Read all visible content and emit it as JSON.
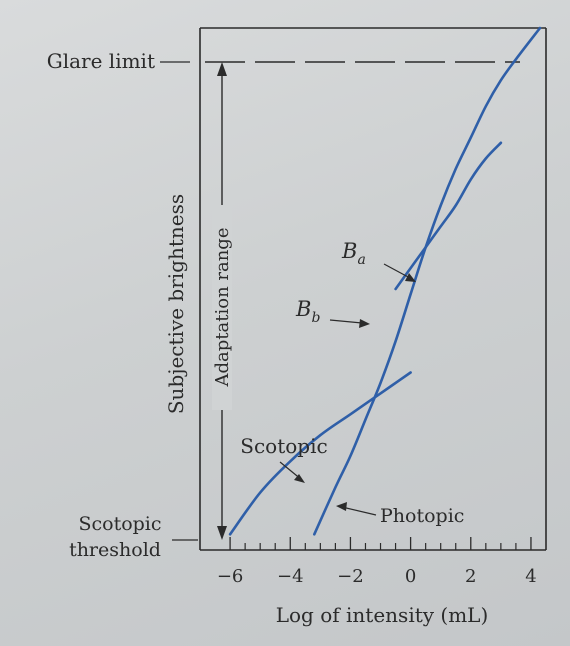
{
  "chart_data": {
    "type": "line",
    "title": "",
    "xlabel": "Log of intensity (mL)",
    "ylabel": "Subjective brightness",
    "xlim": [
      -7,
      4.5
    ],
    "ylim": [
      0,
      10
    ],
    "xticks": [
      {
        "value": -6,
        "label": "−6"
      },
      {
        "value": -4,
        "label": "−4"
      },
      {
        "value": -2,
        "label": "−2"
      },
      {
        "value": 0,
        "label": "0"
      },
      {
        "value": 2,
        "label": "2"
      },
      {
        "value": 4,
        "label": "4"
      }
    ],
    "minor_ticks": [
      -5.5,
      -5,
      -4.5,
      -3.5,
      -3,
      -2.5,
      -1.5,
      -1,
      -0.5,
      0.5,
      1,
      1.5,
      2.5,
      3,
      3.5
    ],
    "grid": false,
    "levels": {
      "glare_limit": {
        "label": "Glare limit",
        "y": 9.9
      },
      "scotopic_threshold": {
        "label_lines": [
          "Scotopic",
          "threshold"
        ],
        "y": 0.2
      }
    },
    "adaptation_range": {
      "label": "Adaptation range",
      "from": 0.2,
      "to": 9.9
    },
    "series": [
      {
        "name": "Scotopic",
        "color": "#2f5fa8",
        "x": [
          -6.0,
          -5.0,
          -4.0,
          -3.0,
          -2.0,
          -1.0,
          0.0
        ],
        "y": [
          0.3,
          1.1,
          1.7,
          2.2,
          2.6,
          3.0,
          3.4
        ]
      },
      {
        "name": "Photopic",
        "color": "#2f5fa8",
        "x": [
          -3.2,
          -2.5,
          -2.0,
          -1.5,
          -1.0,
          -0.5,
          0.0,
          0.5,
          1.0,
          1.5,
          2.0,
          2.5,
          3.0,
          3.5,
          4.3
        ],
        "y": [
          0.3,
          1.2,
          1.8,
          2.5,
          3.2,
          4.0,
          4.9,
          5.8,
          6.6,
          7.3,
          7.9,
          8.5,
          9.0,
          9.4,
          10.0
        ]
      },
      {
        "name": "Bb",
        "color": "#2f5fa8",
        "x": [
          -0.5,
          0.0,
          0.5,
          1.0,
          1.5,
          2.0,
          2.5,
          3.0
        ],
        "y": [
          5.0,
          5.4,
          5.8,
          6.2,
          6.6,
          7.1,
          7.5,
          7.8
        ]
      }
    ],
    "annotations": [
      {
        "text": "Scotopic",
        "points_to": "Scotopic"
      },
      {
        "text": "Photopic",
        "points_to": "Photopic"
      },
      {
        "text": "B",
        "sub": "a",
        "points_to": "Photopic"
      },
      {
        "text": "B",
        "sub": "b",
        "points_to": "Bb"
      }
    ]
  }
}
